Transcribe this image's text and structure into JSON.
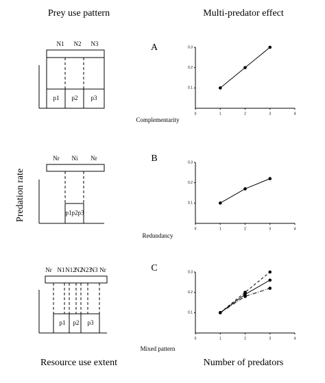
{
  "headers": {
    "left_title": "Prey use pattern",
    "right_title": "Multi-predator effect",
    "y_label": "Predation rate",
    "left_footer": "Resource use extent",
    "right_footer": "Number of predators"
  },
  "diagrams": [
    {
      "top_labels": [
        "N1",
        "N2",
        "N3"
      ],
      "bottom_labels": [
        "p1",
        "p2",
        "p3"
      ]
    },
    {
      "top_labels": [
        "Nr",
        "Ni",
        "Nr"
      ],
      "bottom_labels": [
        "p1p2p3"
      ]
    },
    {
      "top_labels": [
        "Nr",
        "N1",
        "N12",
        "N2",
        "N23",
        "N3",
        "Nr"
      ],
      "bottom_labels": [
        "p1",
        "p2",
        "p3"
      ]
    }
  ],
  "chart_data": [
    {
      "type": "line",
      "panel": "A",
      "xlabel": "Complementarity",
      "x": [
        1,
        2,
        3
      ],
      "series": [
        {
          "color": "#000000",
          "linestyle": "solid",
          "values": [
            0.1,
            0.2,
            0.3
          ]
        }
      ],
      "xlim": [
        0,
        4
      ],
      "ylim": [
        0,
        0.3
      ],
      "xticks": [
        0,
        1,
        2,
        3,
        4
      ],
      "yticks": [
        0.1,
        0.2,
        0.3
      ]
    },
    {
      "type": "line",
      "panel": "B",
      "xlabel": "Redundancy",
      "x": [
        1,
        2,
        3
      ],
      "series": [
        {
          "color": "#000000",
          "linestyle": "solid",
          "values": [
            0.1,
            0.17,
            0.22
          ]
        }
      ],
      "xlim": [
        0,
        4
      ],
      "ylim": [
        0,
        0.3
      ],
      "xticks": [
        0,
        1,
        2,
        3,
        4
      ],
      "yticks": [
        0.1,
        0.2,
        0.3
      ]
    },
    {
      "type": "line",
      "panel": "C",
      "xlabel": "Mixed pattern",
      "x": [
        1,
        2,
        3
      ],
      "series": [
        {
          "color": "#000000",
          "linestyle": "dashed",
          "values": [
            0.1,
            0.2,
            0.3
          ]
        },
        {
          "color": "#000000",
          "linestyle": "solid",
          "values": [
            0.1,
            0.19,
            0.26
          ]
        },
        {
          "color": "#000000",
          "linestyle": "dashdot",
          "values": [
            0.1,
            0.18,
            0.22
          ]
        }
      ],
      "xlim": [
        0,
        4
      ],
      "ylim": [
        0,
        0.3
      ],
      "xticks": [
        0,
        1,
        2,
        3,
        4
      ],
      "yticks": [
        0.1,
        0.2,
        0.3
      ]
    }
  ]
}
